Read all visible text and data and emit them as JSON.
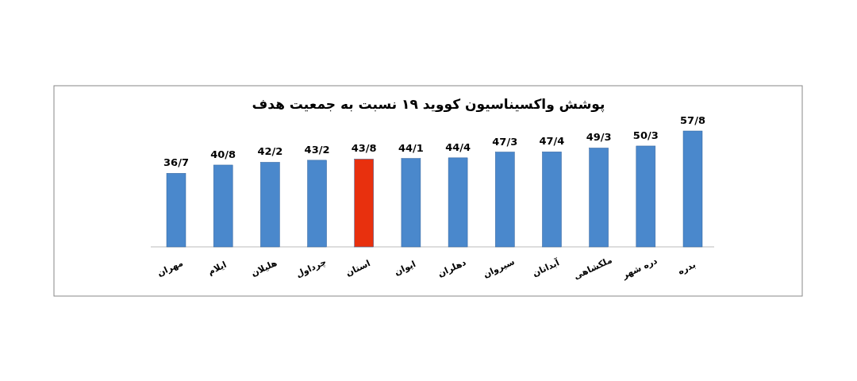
{
  "chart_data": {
    "type": "bar",
    "title": "پوشش واکسیناسیون کووید ۱۹ نسبت به جمعیت هدف",
    "categories": [
      "مهران",
      "ایلام",
      "هلیلان",
      "چرداول",
      "استان",
      "ایوان",
      "دهلران",
      "سیروان",
      "آبدانان",
      "ملکشاهی",
      "دره شهر",
      "بدره"
    ],
    "values": [
      36.7,
      40.8,
      42.2,
      43.2,
      43.8,
      44.1,
      44.4,
      47.3,
      47.4,
      49.3,
      50.3,
      57.8
    ],
    "value_labels": [
      "36/7",
      "40/8",
      "42/2",
      "43/2",
      "43/8",
      "44/1",
      "44/4",
      "47/3",
      "47/4",
      "49/3",
      "50/3",
      "57/8"
    ],
    "colors": [
      "#4a88cc",
      "#4a88cc",
      "#4a88cc",
      "#4a88cc",
      "#e8300e",
      "#4a88cc",
      "#4a88cc",
      "#4a88cc",
      "#4a88cc",
      "#4a88cc",
      "#4a88cc",
      "#4a88cc"
    ]
  }
}
